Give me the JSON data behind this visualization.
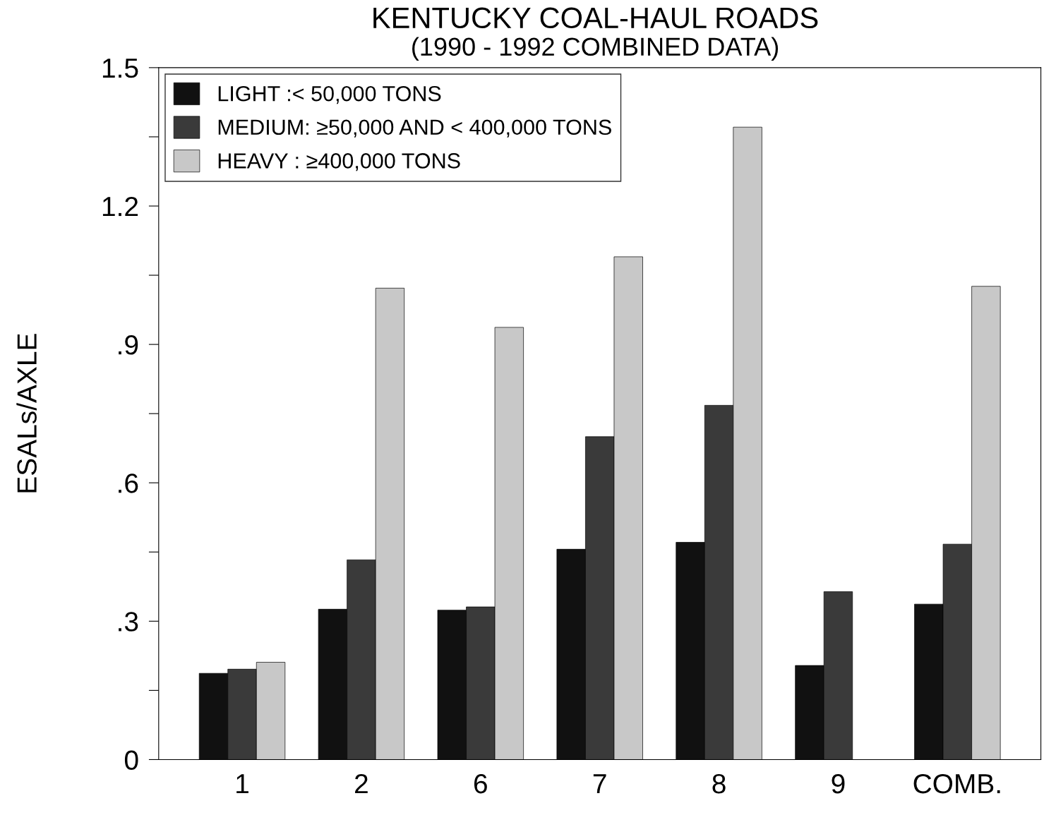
{
  "chart_data": {
    "type": "bar",
    "title": "KENTUCKY COAL-HAUL ROADS",
    "subtitle": "(1990 - 1992 COMBINED DATA)",
    "ylabel": "ESALs/AXLE",
    "categories": [
      "1",
      "2",
      "6",
      "7",
      "8",
      "9",
      "COMB."
    ],
    "series": [
      {
        "name": "LIGHT :< 50,000 TONS",
        "color": "#111111",
        "values": [
          0.187,
          0.326,
          0.324,
          0.456,
          0.471,
          0.204,
          0.337
        ]
      },
      {
        "name": "MEDIUM: ≥50,000 AND < 400,000 TONS",
        "color": "#3a3a3a",
        "values": [
          0.196,
          0.433,
          0.331,
          0.7,
          0.768,
          0.364,
          0.467
        ]
      },
      {
        "name": "HEAVY : ≥400,000 TONS",
        "color": "#c8c8c8",
        "values": [
          0.211,
          1.022,
          0.937,
          1.09,
          1.371,
          null,
          1.026
        ]
      }
    ],
    "ylim": [
      0,
      1.5
    ],
    "yticks": [
      {
        "value": 0,
        "label": "0"
      },
      {
        "value": 0.15,
        "label": null
      },
      {
        "value": 0.3,
        "label": ".3"
      },
      {
        "value": 0.45,
        "label": null
      },
      {
        "value": 0.6,
        "label": ".6"
      },
      {
        "value": 0.75,
        "label": null
      },
      {
        "value": 0.9,
        "label": ".9"
      },
      {
        "value": 1.05,
        "label": null
      },
      {
        "value": 1.2,
        "label": "1.2"
      },
      {
        "value": 1.35,
        "label": null
      },
      {
        "value": 1.5,
        "label": "1.5"
      }
    ],
    "grid": false,
    "legend": "top left"
  }
}
